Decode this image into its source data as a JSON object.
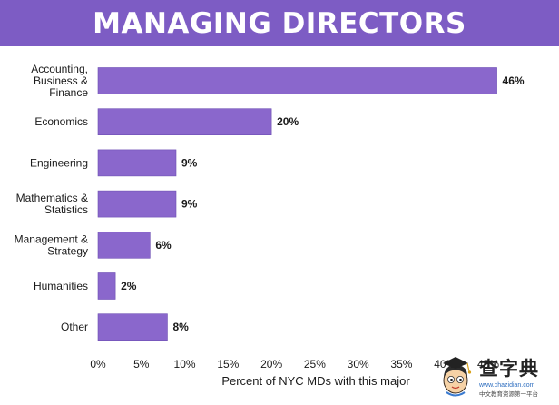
{
  "title": "MANAGING DIRECTORS",
  "colors": {
    "banner": "#7d5cc4",
    "bar": "#8a67cc",
    "bar_edge": "#6d4eb3"
  },
  "chart_data": {
    "type": "bar",
    "orientation": "horizontal",
    "categories": [
      "Accounting,\nBusiness &\nFinance",
      "Economics",
      "Engineering",
      "Mathematics &\nStatistics",
      "Management &\nStrategy",
      "Humanities",
      "Other"
    ],
    "values": [
      46,
      20,
      9,
      9,
      6,
      2,
      8
    ],
    "value_labels": [
      "46%",
      "20%",
      "9%",
      "9%",
      "6%",
      "2%",
      "8%"
    ],
    "xlabel": "Percent of NYC MDs with this major",
    "xlim": [
      0,
      45
    ],
    "xticks": [
      0,
      5,
      10,
      15,
      20,
      25,
      30,
      35,
      40,
      45
    ],
    "xtick_labels": [
      "0%",
      "5%",
      "10%",
      "15%",
      "20%",
      "25%",
      "30%",
      "35%",
      "40%",
      "45%"
    ],
    "grid": false,
    "legend": "none"
  },
  "watermark": {
    "text": "查字典",
    "url_text": "www.chazidian.com",
    "tagline": "中文教育资源第一平台"
  }
}
